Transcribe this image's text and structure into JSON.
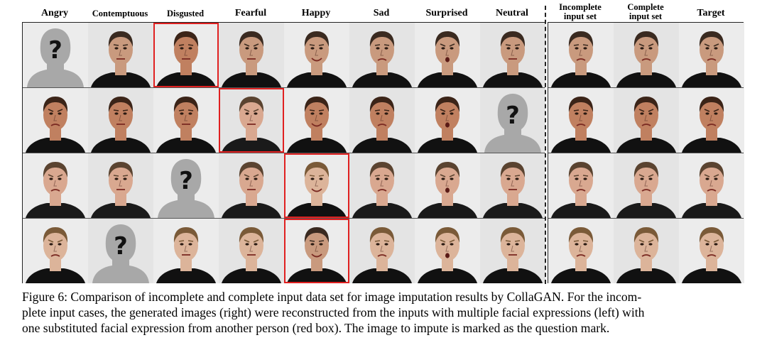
{
  "figure": {
    "left_columns": [
      "Angry",
      "Contemptuous",
      "Disgusted",
      "Fearful",
      "Happy",
      "Sad",
      "Surprised",
      "Neutral"
    ],
    "right_columns": [
      {
        "line1": "Incomplete",
        "line2": "input set"
      },
      {
        "line1": "Complete",
        "line2": "input set"
      },
      {
        "line1": "Target",
        "line2": ""
      }
    ],
    "placeholder_glyph": "?",
    "rows": [
      {
        "skin": "#c99a7e",
        "hair": "#3a2a20",
        "shirt": "#111111",
        "missing_col": 0,
        "red_col": 2
      },
      {
        "skin": "#c08060",
        "hair": "#3b2418",
        "shirt": "#111111",
        "missing_col": 7,
        "red_col": 3
      },
      {
        "skin": "#d9a890",
        "hair": "#5a4330",
        "shirt": "#1a1a1a",
        "missing_col": 2,
        "red_col": 4
      },
      {
        "skin": "#dcb49a",
        "hair": "#7a5a38",
        "shirt": "#111111",
        "missing_col": 1,
        "red_col": 4
      }
    ],
    "colors": {
      "red_box": "#e02020",
      "placeholder": "#a8a8a8",
      "background": "#e9e9e9"
    }
  },
  "caption": {
    "line1": "Figure 6: Comparison of incomplete and complete input data set for image imputation results by CollaGAN. For the incom-",
    "line2": "plete input cases, the generated images (right) were reconstructed from the inputs with multiple facial expressions (left) with",
    "line3": "one substituted facial expression from another person (red box). The image to impute is marked as the question mark."
  }
}
